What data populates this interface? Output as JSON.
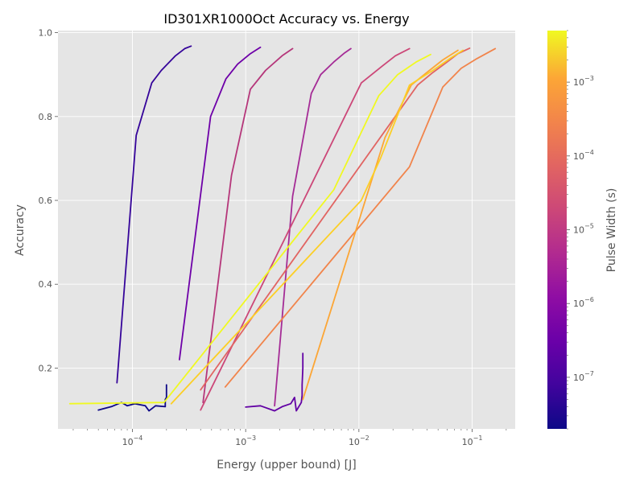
{
  "chart_data": {
    "type": "line",
    "title": "ID301XR1000Oct Accuracy vs. Energy",
    "xlabel": "Energy (upper bound) [J]",
    "ylabel": "Accuracy",
    "xscale": "log",
    "xlim": [
      2.2e-05,
      0.24
    ],
    "ylim": [
      0.055,
      1.005
    ],
    "grid": true,
    "legend": "none",
    "x_ticks": [
      {
        "value": 0.0001,
        "base": "10",
        "exp": "−4"
      },
      {
        "value": 0.001,
        "base": "10",
        "exp": "−3"
      },
      {
        "value": 0.01,
        "base": "10",
        "exp": "−2"
      },
      {
        "value": 0.1,
        "base": "10",
        "exp": "−1"
      }
    ],
    "y_ticks": [
      {
        "value": 0.2,
        "label": "0.2"
      },
      {
        "value": 0.4,
        "label": "0.4"
      },
      {
        "value": 0.6,
        "label": "0.6"
      },
      {
        "value": 0.8,
        "label": "0.8"
      },
      {
        "value": 1.0,
        "label": "1.0"
      }
    ],
    "colorbar": {
      "label": "Pulse Width (s)",
      "scale": "log",
      "range": [
        2e-08,
        0.005
      ],
      "colormap": "plasma",
      "ticks": [
        {
          "value": 1e-07,
          "base": "10",
          "exp": "−7"
        },
        {
          "value": 1e-06,
          "base": "10",
          "exp": "−6"
        },
        {
          "value": 1e-05,
          "base": "10",
          "exp": "−5"
        },
        {
          "value": 0.0001,
          "base": "10",
          "exp": "−4"
        },
        {
          "value": 0.001,
          "base": "10",
          "exp": "−3"
        }
      ]
    },
    "series": [
      {
        "pulse_width": 2e-08,
        "color": "#0d0887",
        "points": [
          [
            5e-05,
            0.1
          ],
          [
            6.5e-05,
            0.108
          ],
          [
            8e-05,
            0.118
          ],
          [
            9e-05,
            0.11
          ],
          [
            0.000105,
            0.115
          ],
          [
            0.00013,
            0.11
          ],
          [
            0.00014,
            0.098
          ],
          [
            0.00016,
            0.11
          ],
          [
            0.000195,
            0.108
          ],
          [
            0.000195,
            0.125
          ],
          [
            0.0002,
            0.13
          ],
          [
            0.0002,
            0.145
          ],
          [
            0.0002,
            0.16
          ]
        ]
      },
      {
        "pulse_width": 6e-08,
        "color": "#35049a",
        "points": [
          [
            7.3e-05,
            0.165
          ],
          [
            0.000108,
            0.755
          ],
          [
            0.000148,
            0.88
          ],
          [
            0.00018,
            0.91
          ],
          [
            0.00024,
            0.945
          ],
          [
            0.00029,
            0.962
          ],
          [
            0.00033,
            0.968
          ]
        ]
      },
      {
        "pulse_width": 3e-07,
        "color": "#6200a4",
        "points": [
          [
            0.001,
            0.107
          ],
          [
            0.00135,
            0.11
          ],
          [
            0.0018,
            0.098
          ],
          [
            0.0021,
            0.108
          ],
          [
            0.0025,
            0.115
          ],
          [
            0.0027,
            0.13
          ],
          [
            0.0028,
            0.098
          ],
          [
            0.0031,
            0.118
          ],
          [
            0.00315,
            0.135
          ],
          [
            0.00315,
            0.16
          ],
          [
            0.0032,
            0.2
          ],
          [
            0.0032,
            0.235
          ]
        ]
      },
      {
        "pulse_width": 5e-07,
        "color": "#6e00a8",
        "points": [
          [
            0.00026,
            0.22
          ],
          [
            0.00049,
            0.8
          ],
          [
            0.00067,
            0.89
          ],
          [
            0.00085,
            0.925
          ],
          [
            0.0011,
            0.95
          ],
          [
            0.00135,
            0.965
          ]
        ]
      },
      {
        "pulse_width": 2e-06,
        "color": "#a52c96",
        "points": [
          [
            0.0018,
            0.11
          ],
          [
            0.0026,
            0.61
          ],
          [
            0.0038,
            0.855
          ],
          [
            0.0046,
            0.9
          ],
          [
            0.006,
            0.93
          ],
          [
            0.0075,
            0.952
          ],
          [
            0.0085,
            0.962
          ]
        ]
      },
      {
        "pulse_width": 5e-06,
        "color": "#b5367a",
        "points": [
          [
            0.00042,
            0.118
          ],
          [
            0.00075,
            0.66
          ],
          [
            0.0011,
            0.865
          ],
          [
            0.0015,
            0.91
          ],
          [
            0.0021,
            0.945
          ],
          [
            0.0026,
            0.962
          ]
        ]
      },
      {
        "pulse_width": 1e-05,
        "color": "#cc4778",
        "points": [
          [
            0.0004,
            0.1
          ],
          [
            0.0105,
            0.88
          ],
          [
            0.016,
            0.92
          ],
          [
            0.021,
            0.945
          ],
          [
            0.028,
            0.962
          ]
        ]
      },
      {
        "pulse_width": 2e-05,
        "color": "#e16462",
        "points": [
          [
            0.0004,
            0.148
          ],
          [
            0.033,
            0.875
          ],
          [
            0.045,
            0.905
          ],
          [
            0.06,
            0.93
          ],
          [
            0.075,
            0.95
          ],
          [
            0.095,
            0.963
          ]
        ]
      },
      {
        "pulse_width": 8e-05,
        "color": "#f1844b",
        "points": [
          [
            0.00066,
            0.155
          ],
          [
            0.028,
            0.68
          ],
          [
            0.055,
            0.87
          ],
          [
            0.08,
            0.915
          ],
          [
            0.11,
            0.938
          ],
          [
            0.16,
            0.962
          ]
        ]
      },
      {
        "pulse_width": 0.0004,
        "color": "#fca636",
        "points": [
          [
            0.0032,
            0.125
          ],
          [
            0.017,
            0.75
          ],
          [
            0.029,
            0.875
          ],
          [
            0.042,
            0.91
          ],
          [
            0.055,
            0.935
          ],
          [
            0.075,
            0.958
          ]
        ]
      },
      {
        "pulse_width": 0.0015,
        "color": "#fccf25",
        "points": [
          [
            0.00022,
            0.115
          ],
          [
            0.0105,
            0.6
          ],
          [
            0.0155,
            0.7
          ],
          [
            0.028,
            0.875
          ],
          [
            0.045,
            0.91
          ],
          [
            0.065,
            0.94
          ],
          [
            0.083,
            0.958
          ]
        ]
      },
      {
        "pulse_width": 0.005,
        "color": "#f0f921",
        "points": [
          [
            2.8e-05,
            0.115
          ],
          [
            0.00019,
            0.118
          ],
          [
            0.006,
            0.625
          ],
          [
            0.015,
            0.85
          ],
          [
            0.022,
            0.9
          ],
          [
            0.032,
            0.93
          ],
          [
            0.043,
            0.948
          ]
        ]
      }
    ]
  }
}
